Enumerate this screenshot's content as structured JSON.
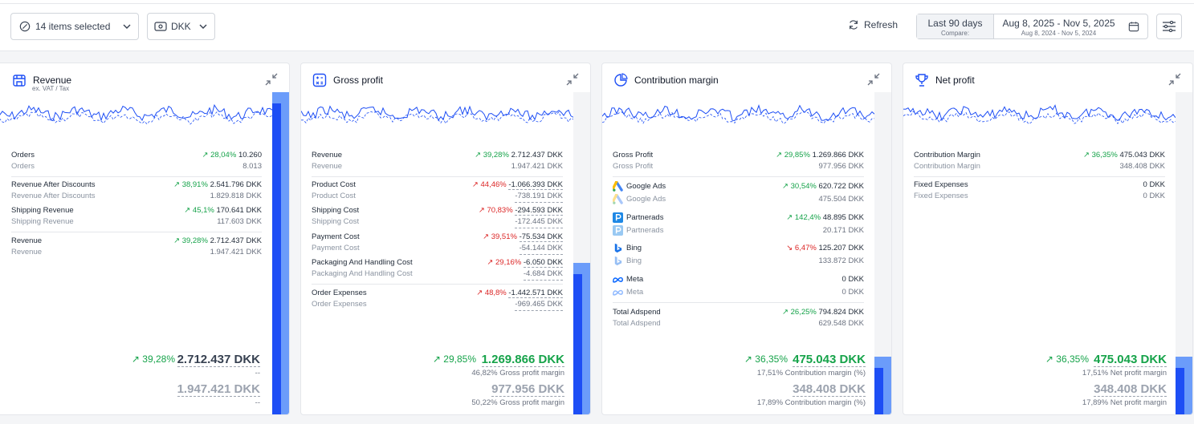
{
  "toolbar": {
    "items_selected": "14 items selected",
    "currency": "DKK",
    "refresh": "Refresh",
    "date_preset": "Last 90 days",
    "compare_label": "Compare:",
    "date_range": "Aug 8, 2025 - Nov 5, 2025",
    "compare_range": "Aug 8, 2024 - Nov 5, 2024"
  },
  "cards": {
    "revenue": {
      "title": "Revenue",
      "subtitle": "ex. VAT / Tax",
      "rows": {
        "orders": {
          "label": "Orders",
          "sub": "Orders",
          "change": "28,04%",
          "value": "10.260",
          "prev": "8.013"
        },
        "after_discounts": {
          "label": "Revenue After Discounts",
          "sub": "Revenue After Discounts",
          "change": "38,91%",
          "value": "2.541.796 DKK",
          "prev": "1.829.818 DKK"
        },
        "shipping": {
          "label": "Shipping Revenue",
          "sub": "Shipping Revenue",
          "change": "45,1%",
          "value": "170.641 DKK",
          "prev": "117.603 DKK"
        },
        "revenue": {
          "label": "Revenue",
          "sub": "Revenue",
          "change": "39,28%",
          "value": "2.712.437 DKK",
          "prev": "1.947.421 DKK"
        }
      },
      "total_change": "39,28%",
      "total": "2.712.437 DKK",
      "total_note": "--",
      "prev_total": "1.947.421 DKK",
      "prev_note": "--",
      "fill_fraction": 1.0
    },
    "gross": {
      "title": "Gross profit",
      "rows": {
        "revenue": {
          "label": "Revenue",
          "sub": "Revenue",
          "change": "39,28%",
          "value": "2.712.437 DKK",
          "prev": "1.947.421 DKK"
        },
        "product": {
          "label": "Product Cost",
          "sub": "Product Cost",
          "change": "44,46%",
          "value": "-1.066.393 DKK",
          "prev": "-738.191 DKK"
        },
        "shipping": {
          "label": "Shipping Cost",
          "sub": "Shipping Cost",
          "change": "70,83%",
          "value": "-294.593 DKK",
          "prev": "-172.445 DKK"
        },
        "payment": {
          "label": "Payment Cost",
          "sub": "Payment Cost",
          "change": "39,51%",
          "value": "-75.534 DKK",
          "prev": "-54.144 DKK"
        },
        "packaging": {
          "label": "Packaging And Handling Cost",
          "sub": "Packaging And Handling Cost",
          "change": "29,16%",
          "value": "-6.050 DKK",
          "prev": "-4.684 DKK"
        },
        "order_exp": {
          "label": "Order Expenses",
          "sub": "Order Expenses",
          "change": "48,8%",
          "value": "-1.442.571 DKK",
          "prev": "-969.465 DKK"
        }
      },
      "total_change": "29,85%",
      "total": "1.269.866 DKK",
      "total_note": "46,82% Gross profit margin",
      "prev_total": "977.956 DKK",
      "prev_note": "50,22% Gross profit margin",
      "fill_fraction": 0.47
    },
    "contribution": {
      "title": "Contribution margin",
      "rows": {
        "gross": {
          "label": "Gross Profit",
          "sub": "Gross Profit",
          "change": "29,85%",
          "value": "1.269.866 DKK",
          "prev": "977.956 DKK"
        },
        "google": {
          "label": "Google Ads",
          "sub": "Google Ads",
          "change": "30,54%",
          "value": "620.722 DKK",
          "prev": "475.504 DKK"
        },
        "partnerads": {
          "label": "Partnerads",
          "sub": "Partnerads",
          "change": "142,4%",
          "value": "48.895 DKK",
          "prev": "20.171 DKK"
        },
        "bing": {
          "label": "Bing",
          "sub": "Bing",
          "change": "6,47%",
          "value": "125.207 DKK",
          "prev": "133.872 DKK"
        },
        "meta": {
          "label": "Meta",
          "sub": "Meta",
          "change": "",
          "value": "0 DKK",
          "prev": "0 DKK"
        },
        "adspend": {
          "label": "Total Adspend",
          "sub": "Total Adspend",
          "change": "26,25%",
          "value": "794.824 DKK",
          "prev": "629.548 DKK"
        }
      },
      "total_change": "36,35%",
      "total": "475.043 DKK",
      "total_note": "17,51% Contribution margin (%)",
      "prev_total": "348.408 DKK",
      "prev_note": "17,89% Contribution margin (%)",
      "fill_fraction": 0.18
    },
    "net": {
      "title": "Net profit",
      "rows": {
        "cm": {
          "label": "Contribution Margin",
          "sub": "Contribution Margin",
          "change": "36,35%",
          "value": "475.043 DKK",
          "prev": "348.408 DKK"
        },
        "fixed": {
          "label": "Fixed Expenses",
          "sub": "Fixed Expenses",
          "change": "",
          "value": "0 DKK",
          "prev": "0 DKK"
        }
      },
      "total_change": "36,35%",
      "total": "475.043 DKK",
      "total_note": "17,51% Net profit margin",
      "prev_total": "348.408 DKK",
      "prev_note": "17,89% Net profit margin",
      "fill_fraction": 0.18
    }
  },
  "colors": {
    "up": "#16a34a",
    "down": "#dc2626",
    "accent": "#1d4ef5",
    "accent_light": "#6b9cfa"
  }
}
